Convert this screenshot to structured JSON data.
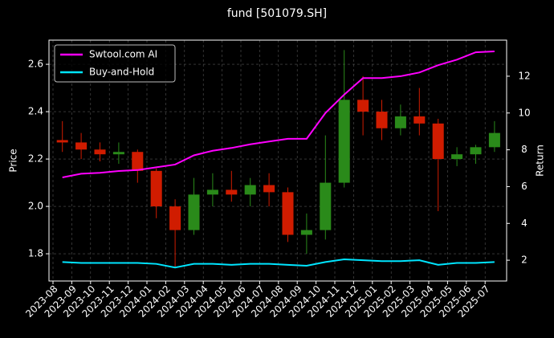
{
  "chart_data": {
    "type": "candlestick",
    "title": "fund [501079.SH]",
    "y_label": "Price",
    "y2_label": "Return",
    "x": [
      "2023-08",
      "2023-09",
      "2023-10",
      "2023-11",
      "2023-12",
      "2024-01",
      "2024-02",
      "2024-03",
      "2024-04",
      "2024-05",
      "2024-06",
      "2024-07",
      "2024-08",
      "2024-09",
      "2024-10",
      "2024-11",
      "2024-12",
      "2025-01",
      "2025-02",
      "2025-03",
      "2025-04",
      "2025-05",
      "2025-06",
      "2025-07"
    ],
    "open": [
      2.28,
      2.27,
      2.24,
      2.22,
      2.23,
      2.15,
      2.0,
      1.9,
      2.05,
      2.07,
      2.05,
      2.09,
      2.06,
      1.88,
      1.9,
      2.1,
      2.45,
      2.4,
      2.33,
      2.38,
      2.35,
      2.2,
      2.22,
      2.25
    ],
    "high": [
      2.36,
      2.31,
      2.27,
      2.27,
      2.24,
      2.16,
      2.03,
      2.12,
      2.14,
      2.15,
      2.12,
      2.14,
      2.08,
      1.97,
      2.3,
      2.66,
      2.55,
      2.45,
      2.43,
      2.5,
      2.37,
      2.25,
      2.26,
      2.36
    ],
    "low": [
      2.23,
      2.2,
      2.19,
      2.18,
      2.1,
      1.95,
      1.74,
      1.88,
      2.0,
      2.02,
      2.0,
      2.0,
      1.85,
      1.8,
      1.86,
      2.08,
      2.3,
      2.28,
      2.3,
      2.3,
      1.98,
      2.17,
      2.18,
      2.23
    ],
    "close": [
      2.27,
      2.24,
      2.22,
      2.23,
      2.15,
      2.0,
      1.9,
      2.05,
      2.07,
      2.05,
      2.09,
      2.06,
      1.88,
      1.9,
      2.1,
      2.45,
      2.4,
      2.33,
      2.38,
      2.35,
      2.2,
      2.22,
      2.25,
      2.31
    ],
    "up_color": "#2a8a1a",
    "down_color": "#d01c00",
    "series": [
      {
        "name": "Swtool.com AI",
        "color": "#ff00ff",
        "axis": "y2",
        "values": [
          6.5,
          6.7,
          6.75,
          6.85,
          6.9,
          7.05,
          7.2,
          7.7,
          7.95,
          8.1,
          8.3,
          8.45,
          8.6,
          8.6,
          10.0,
          11.0,
          11.9,
          11.9,
          12.0,
          12.2,
          12.6,
          12.9,
          13.3,
          13.35
        ]
      },
      {
        "name": "Buy-and-Hold",
        "color": "#00e5ff",
        "axis": "y2",
        "values": [
          1.9,
          1.85,
          1.85,
          1.85,
          1.85,
          1.8,
          1.6,
          1.8,
          1.8,
          1.75,
          1.8,
          1.8,
          1.75,
          1.7,
          1.9,
          2.05,
          2.0,
          1.95,
          1.95,
          2.0,
          1.75,
          1.85,
          1.85,
          1.9
        ]
      }
    ],
    "ylim": [
      1.685,
      2.702
    ],
    "yticks": [
      1.8,
      {
        "value": 2,
        "label": "2.0"
      },
      2.2,
      2.4,
      2.6
    ],
    "y2lim": [
      0.87,
      13.96
    ],
    "y2ticks": [
      2,
      4,
      6,
      8,
      10,
      12
    ],
    "grid": true,
    "legend": "upper left"
  }
}
